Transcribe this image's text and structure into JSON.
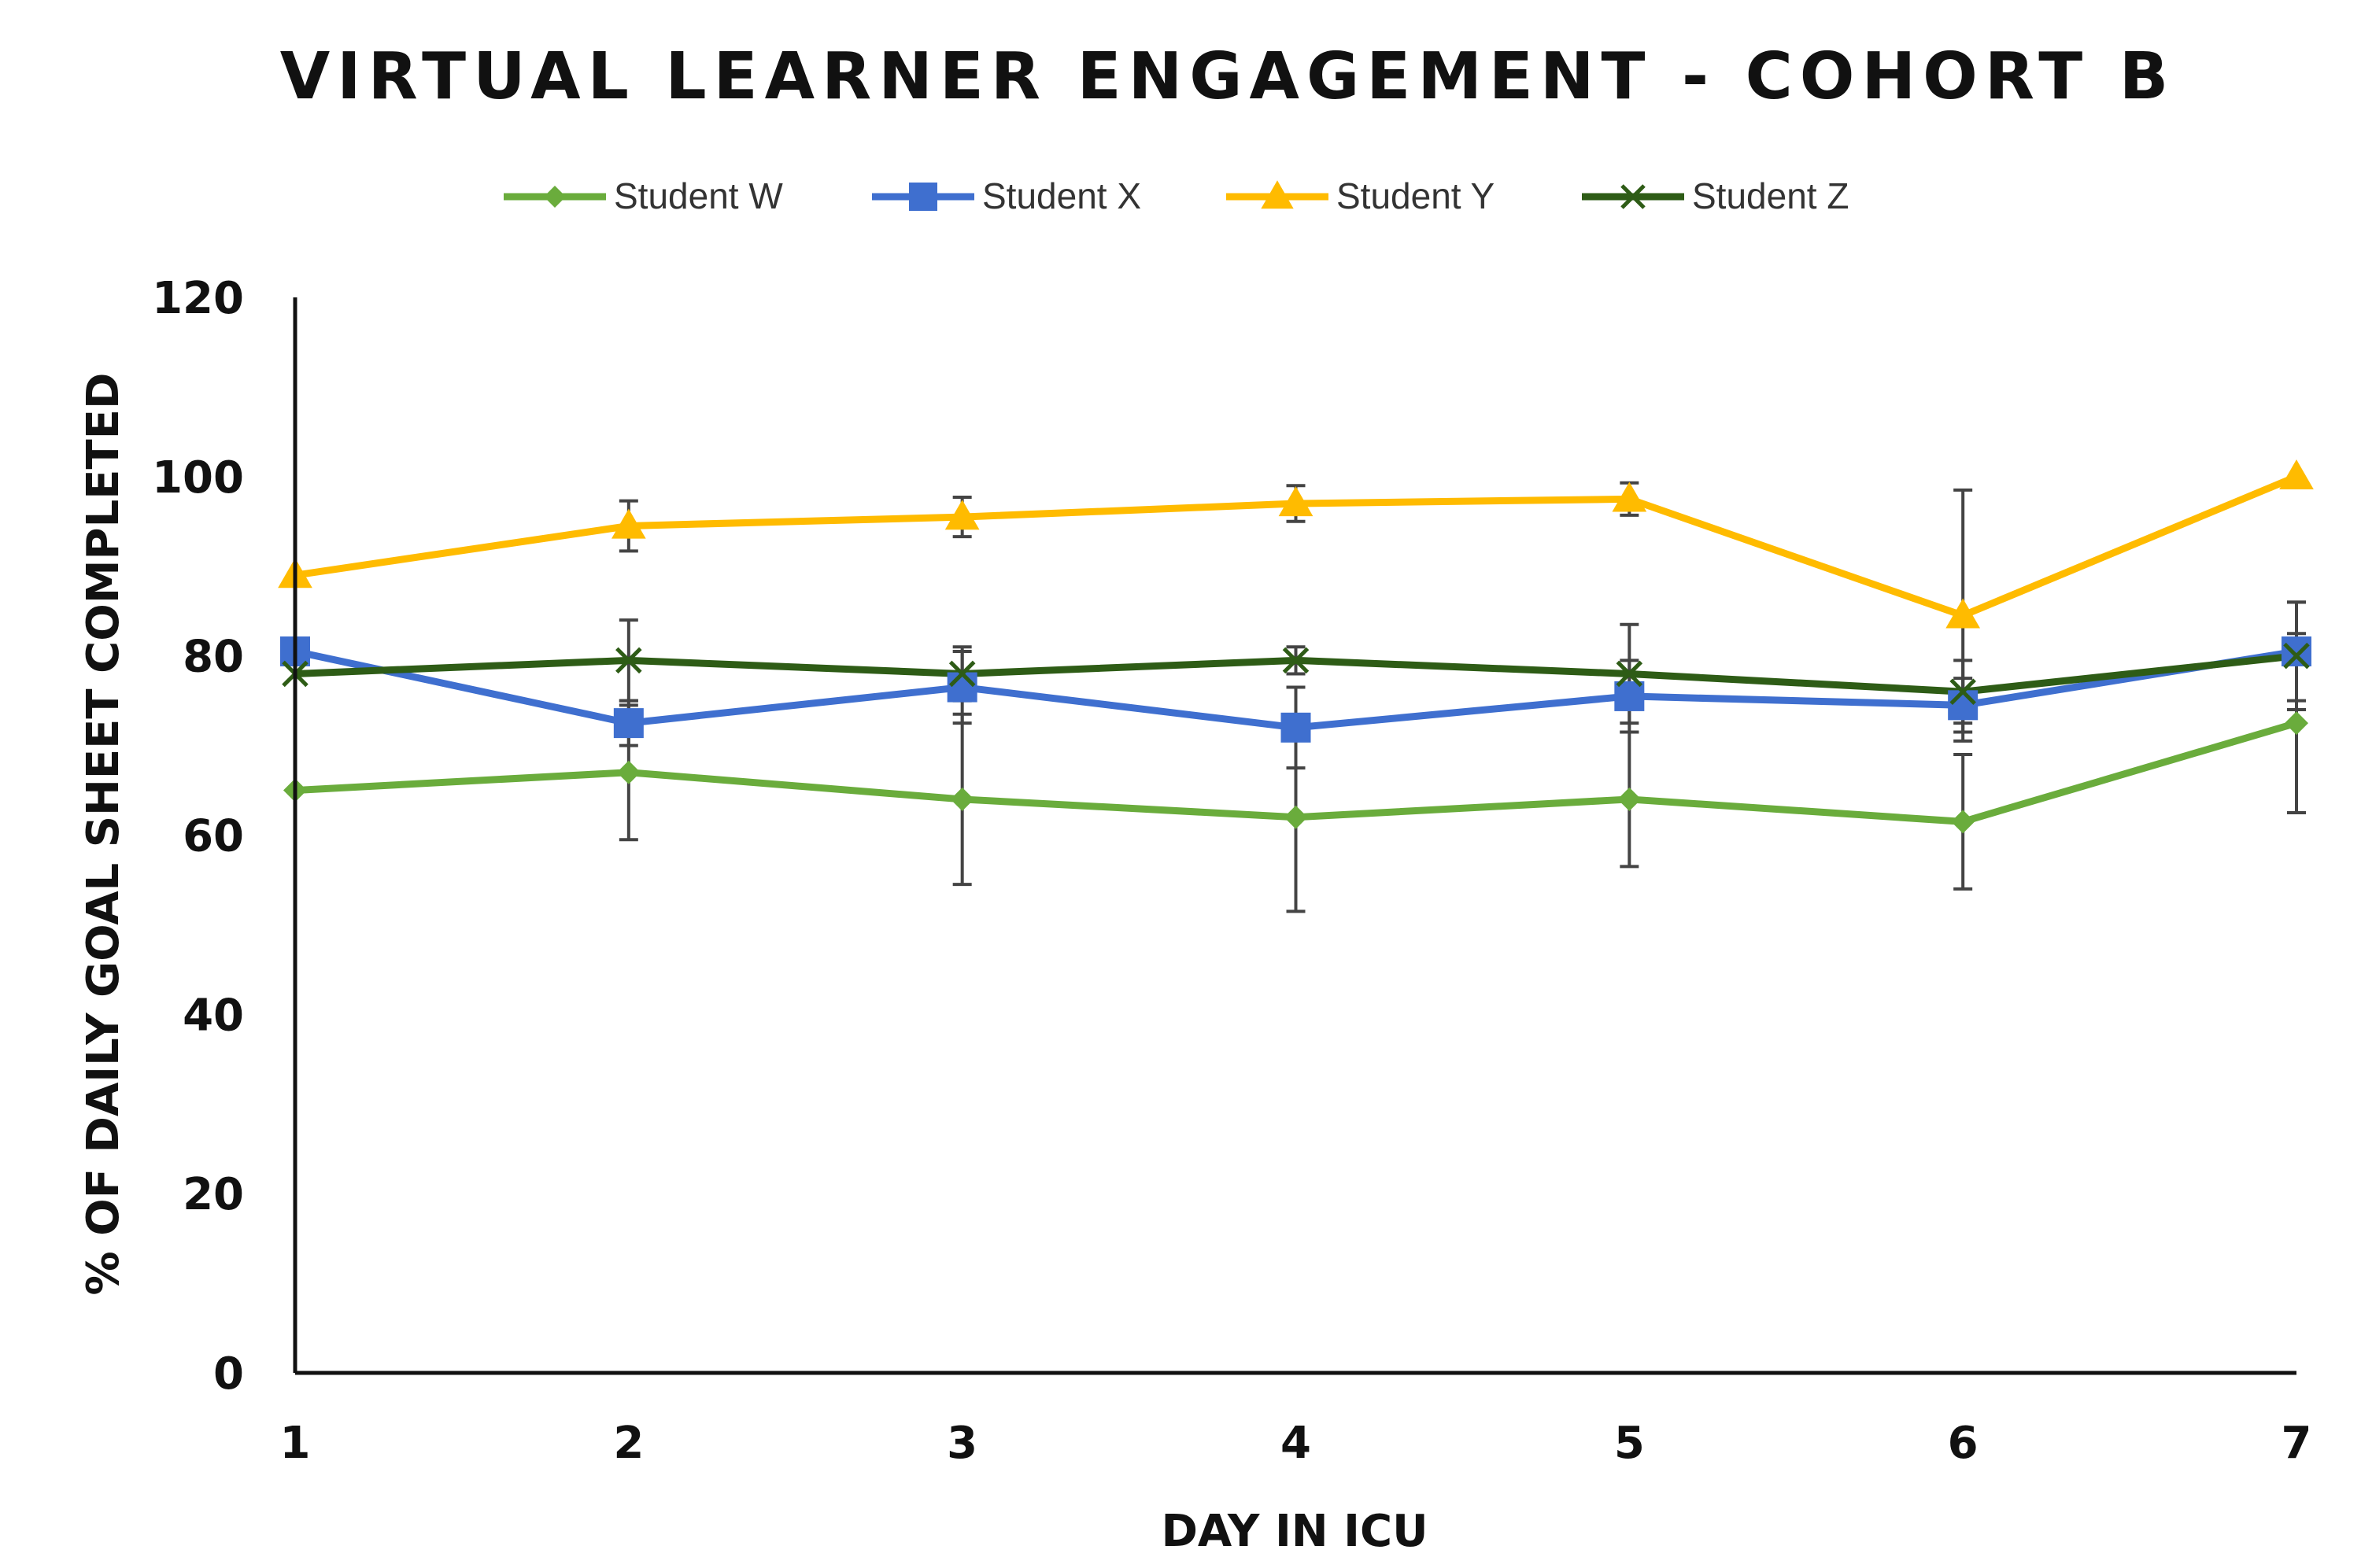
{
  "chart_data": {
    "type": "line",
    "title": "VIRTUAL LEARNER ENGAGEMENT - COHORT B",
    "xlabel": "DAY IN ICU",
    "ylabel": "% OF DAILY GOAL SHEET COMPLETED",
    "x": [
      1,
      2,
      3,
      4,
      5,
      6,
      7
    ],
    "xlim": [
      1,
      7
    ],
    "ylim": [
      0,
      120
    ],
    "yticks": [
      0,
      20,
      40,
      60,
      80,
      100,
      120
    ],
    "grid": false,
    "legend_position": "top",
    "series": [
      {
        "name": "Student W",
        "color": "#6aac3c",
        "marker": "diamond",
        "values": [
          65,
          67,
          64,
          62,
          64,
          61.5,
          72.5
        ],
        "error": [
          null,
          7.5,
          9.5,
          10.5,
          7.5,
          7.5,
          10
        ]
      },
      {
        "name": "Student X",
        "color": "#3f6fcf",
        "marker": "square",
        "values": [
          80.5,
          72.5,
          76.5,
          72,
          75.5,
          74.5,
          80.5
        ],
        "error": [
          null,
          2.5,
          4,
          4.5,
          4,
          3,
          5.5
        ]
      },
      {
        "name": "Student Y",
        "color": "#ffbb00",
        "marker": "triangle",
        "values": [
          89,
          94.5,
          95.5,
          97,
          97.5,
          84.5,
          100
        ],
        "error": [
          null,
          2.8,
          2.2,
          2,
          1.8,
          14,
          null
        ]
      },
      {
        "name": "Student Z",
        "color": "#2e5c16",
        "marker": "x",
        "values": [
          78,
          79.5,
          78,
          79.5,
          78,
          76,
          80
        ],
        "error": [
          null,
          4.5,
          3,
          1.5,
          5.5,
          3.5,
          6
        ]
      }
    ]
  }
}
